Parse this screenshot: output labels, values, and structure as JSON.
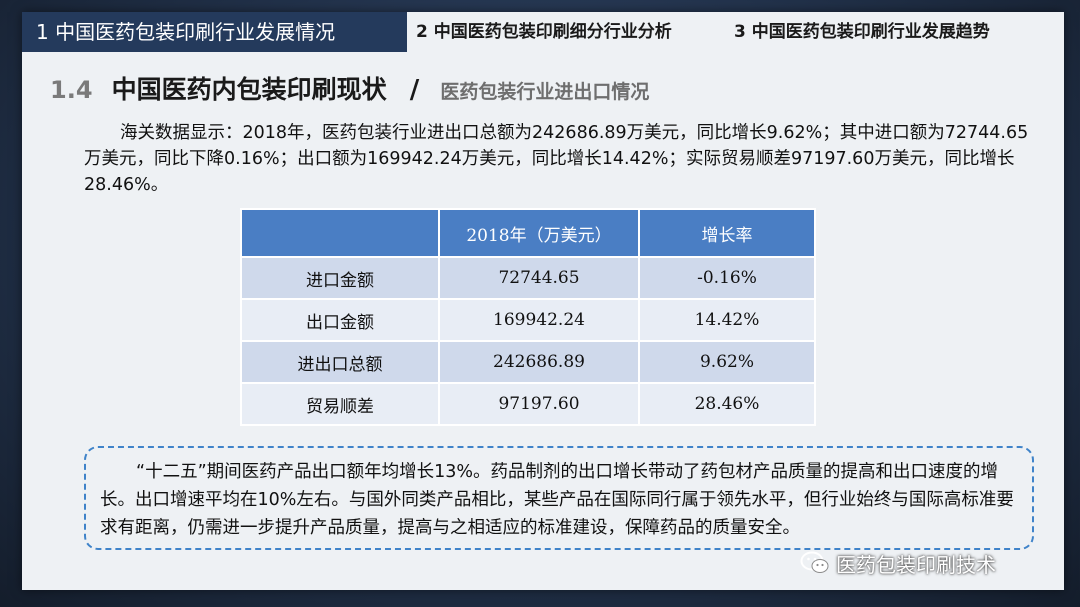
{
  "nav": {
    "active": "1 中国医药包装印刷行业发展情况",
    "item2": "2 中国医药包装印刷细分行业分析",
    "item3": "3 中国医药包装印刷行业发展趋势"
  },
  "section": {
    "number": "1.4",
    "title": "中国医药内包装印刷现状",
    "separator": "/",
    "subtitle": "医药包装行业进出口情况"
  },
  "intro": "海关数据显示：2018年，医药包装行业进出口总额为242686.89万美元，同比增长9.62%；其中进口额为72744.65万美元，同比下降0.16%；出口额为169942.24万美元，同比增长14.42%；实际贸易顺差97197.60万美元，同比增长28.46%。",
  "table": {
    "headers": [
      "",
      "2018年（万美元）",
      "增长率"
    ],
    "rows": [
      [
        "进口金额",
        "72744.65",
        "-0.16%"
      ],
      [
        "出口金额",
        "169942.24",
        "14.42%"
      ],
      [
        "进出口总额",
        "242686.89",
        "9.62%"
      ],
      [
        "贸易顺差",
        "97197.60",
        "28.46%"
      ]
    ]
  },
  "note": "“十二五”期间医药产品出口额年均增长13%。药品制剂的出口增长带动了药包材产品质量的提高和出口速度的增长。出口增速平均在10%左右。与国外同类产品相比，某些产品在国际同行属于领先水平，但行业始终与国际高标准要求有距离，仍需进一步提升产品质量，提高与之相适应的标准建设，保障药品的质量安全。",
  "watermark": {
    "icon": "wechat-icon",
    "text": "医药包装印刷技术"
  },
  "colors": {
    "nav_active_bg": "#243a5c",
    "table_header_bg": "#4a7ec4",
    "dashed_border": "#3f83c9"
  }
}
